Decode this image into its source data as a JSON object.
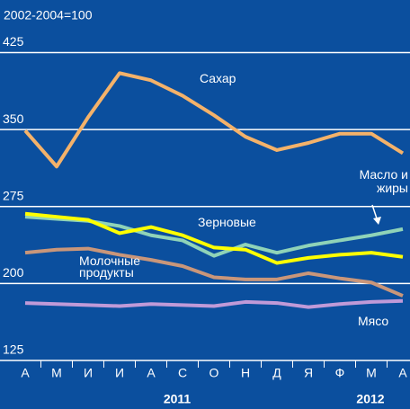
{
  "chart_data": {
    "type": "line",
    "subtitle": "2002-2004=100",
    "categories": [
      "А",
      "М",
      "И",
      "И",
      "А",
      "С",
      "О",
      "Н",
      "Д",
      "Я",
      "Ф",
      "М",
      "А"
    ],
    "years": [
      "2011",
      "2012"
    ],
    "ylim": [
      125,
      450
    ],
    "yticks": [
      125,
      200,
      275,
      350,
      425
    ],
    "grid": true,
    "series": [
      {
        "name": "Сахар",
        "color": "#f4b26a",
        "values": [
          349,
          314,
          362,
          405,
          398,
          383,
          364,
          343,
          330,
          337,
          346,
          346,
          327
        ]
      },
      {
        "name": "Масло и жиры",
        "color": "#8fd3b8",
        "values": [
          265,
          263,
          261,
          256,
          247,
          242,
          227,
          238,
          230,
          237,
          242,
          247,
          253
        ]
      },
      {
        "name": "Зерновые",
        "color": "#ffff00",
        "values": [
          268,
          265,
          262,
          249,
          255,
          247,
          235,
          233,
          220,
          225,
          228,
          230,
          226
        ]
      },
      {
        "name": "Молочные продукты",
        "color": "#c9967a",
        "values": [
          230,
          233,
          234,
          228,
          223,
          217,
          206,
          204,
          204,
          210,
          205,
          201,
          188
        ]
      },
      {
        "name": "Мясо",
        "color": "#c09ad8",
        "values": [
          181,
          180,
          179,
          178,
          180,
          179,
          178,
          182,
          181,
          177,
          180,
          182,
          183
        ]
      }
    ]
  }
}
